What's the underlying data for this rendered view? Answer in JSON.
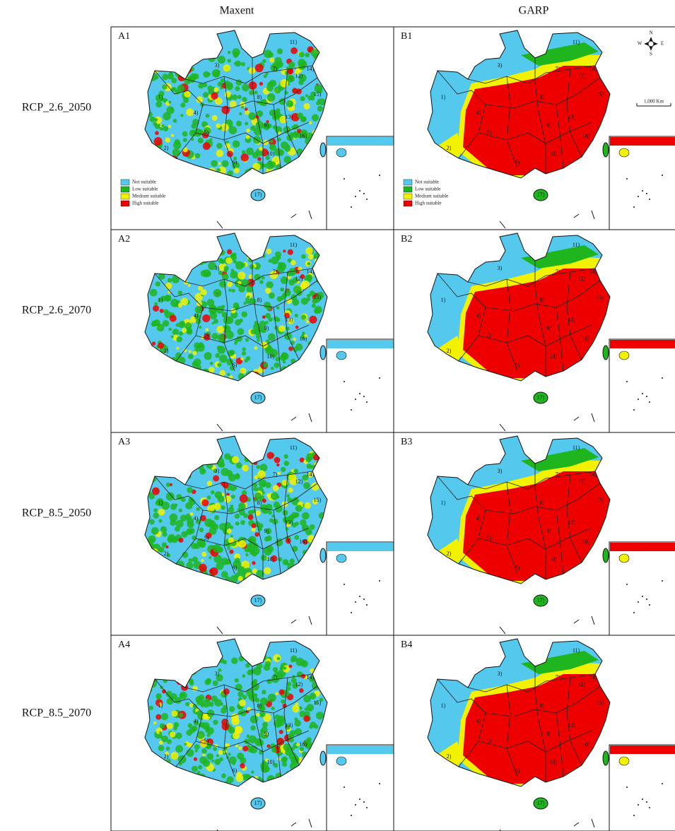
{
  "column_headers": [
    "Maxent",
    "GARP"
  ],
  "rows": [
    {
      "label": "RCP_2.6_2050",
      "panels": [
        "A1",
        "B1"
      ]
    },
    {
      "label": "RCP_2.6_2070",
      "panels": [
        "A2",
        "B2"
      ]
    },
    {
      "label": "RCP_8.5_2050",
      "panels": [
        "A3",
        "B3"
      ]
    },
    {
      "label": "RCP_8.5_2070",
      "panels": [
        "A4",
        "B4"
      ]
    }
  ],
  "legend": [
    "Not suitable",
    "Low suitable",
    "Medium suitable",
    "High suitable"
  ],
  "compass": {
    "n": "N",
    "s": "S",
    "w": "W",
    "e": "E"
  },
  "scale_bar": "1,000 Km",
  "region_labels": [
    "1)",
    "2)",
    "3)",
    "4)",
    "5)",
    "6)",
    "7)",
    "8)",
    "9)",
    "10)",
    "11)",
    "12)",
    "13)",
    "14)",
    "15)",
    "16)",
    "17)"
  ]
}
